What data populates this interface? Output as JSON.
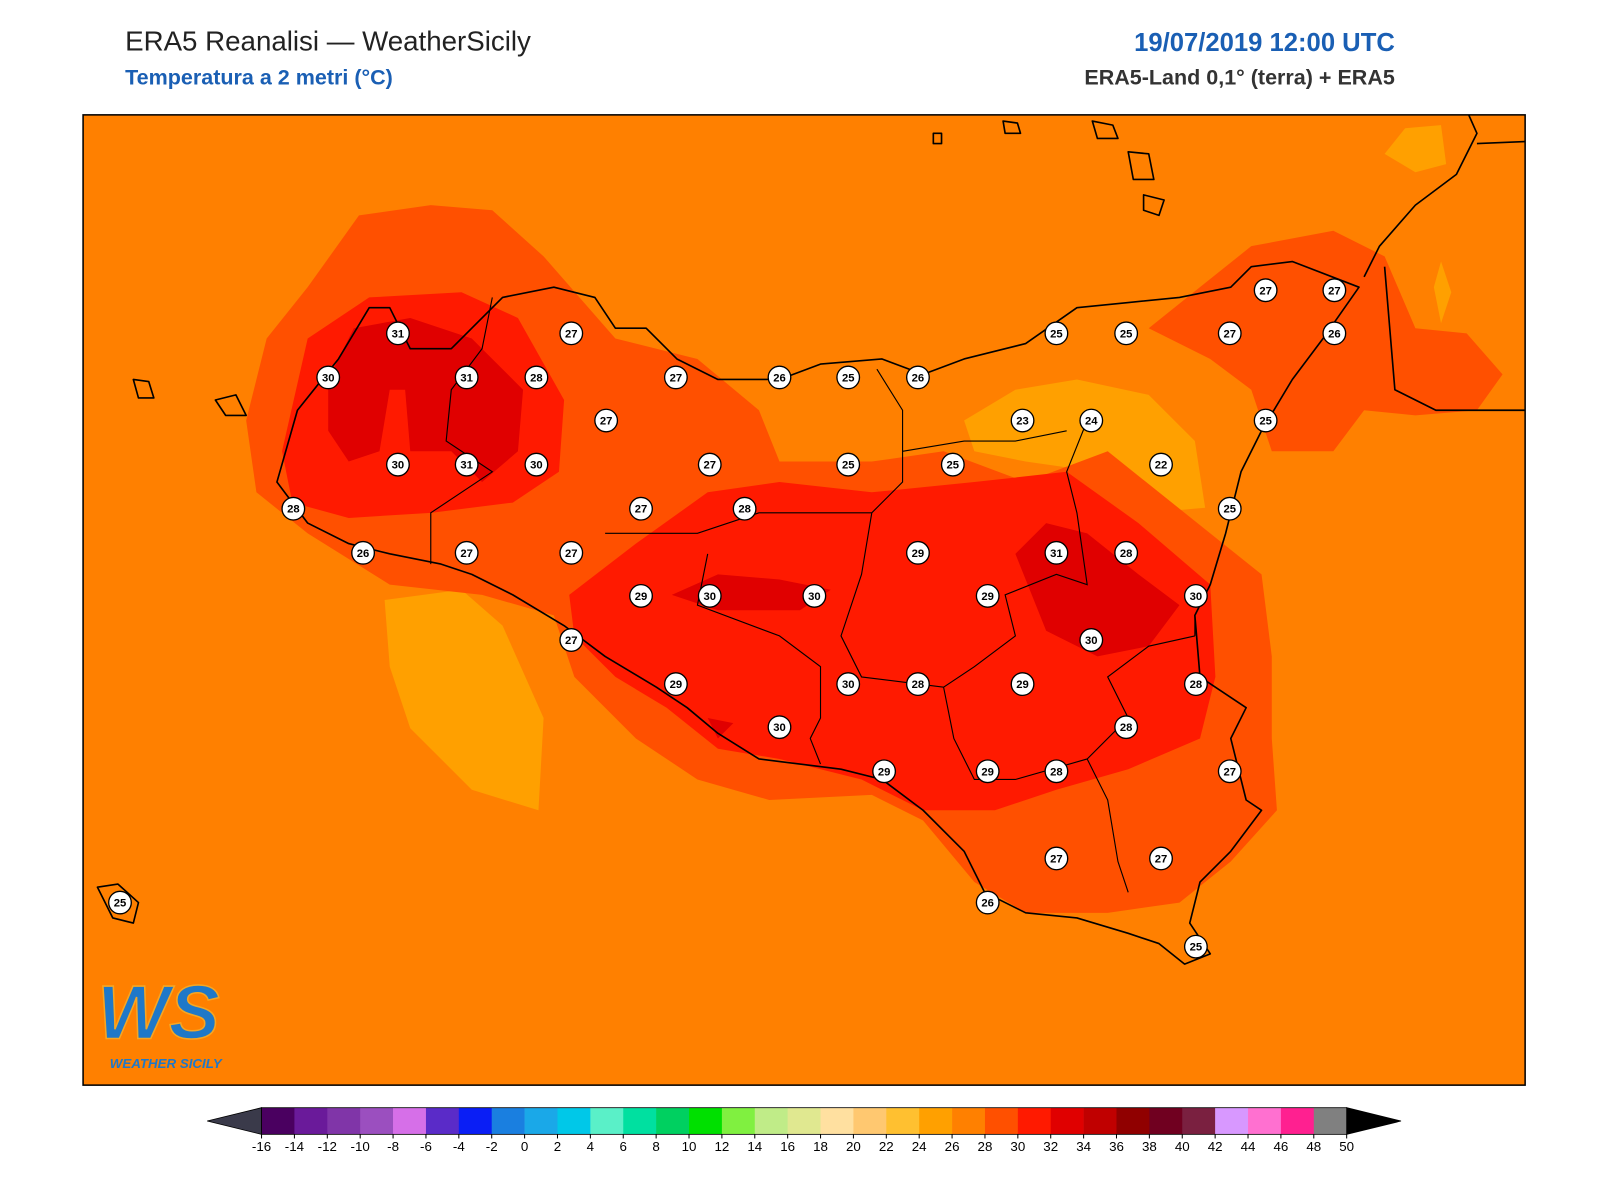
{
  "header": {
    "title": "ERA5 Reanalisi — WeatherSicily",
    "subtitle": "Temperatura a 2 metri (°C)",
    "date": "19/07/2019 12:00 UTC",
    "source": "ERA5-Land 0,1° (terra) + ERA5"
  },
  "stations": {
    "values": [
      31,
      27,
      30,
      31,
      28,
      27,
      26,
      25,
      26,
      25,
      25,
      27,
      27,
      27,
      26,
      27,
      23,
      24,
      25,
      30,
      31,
      30,
      27,
      25,
      25,
      22,
      28,
      27,
      28,
      25,
      26,
      27,
      27,
      29,
      31,
      28,
      29,
      30,
      30,
      29,
      30,
      27,
      30,
      29,
      30,
      28,
      29,
      28,
      30,
      28,
      29,
      29,
      28,
      27,
      27,
      27,
      26,
      25,
      25
    ]
  },
  "colorbar": {
    "ticks": [
      -16,
      -14,
      -12,
      -10,
      -8,
      -6,
      -4,
      -2,
      0,
      2,
      4,
      6,
      8,
      10,
      12,
      14,
      16,
      18,
      20,
      22,
      24,
      26,
      28,
      30,
      32,
      34,
      36,
      38,
      40,
      42,
      44,
      46,
      48,
      50
    ],
    "colors": [
      "#4a0060",
      "#6a1a9a",
      "#8035a8",
      "#9b4fbf",
      "#d66fe8",
      "#5a2bc8",
      "#0a1ef5",
      "#1a7fe0",
      "#1aa8e8",
      "#00c8e8",
      "#5af0c8",
      "#00e0a0",
      "#00d060",
      "#00e000",
      "#80f040",
      "#c0ec88",
      "#e0e890",
      "#ffe0a0",
      "#ffc870",
      "#ffc030",
      "#ffa000",
      "#ff8000",
      "#ff5000",
      "#ff1a00",
      "#e00000",
      "#c00000",
      "#900000",
      "#700020",
      "#7a2040",
      "#d898ff",
      "#ff70d0",
      "#ff2090",
      "#808080",
      "#333333"
    ],
    "under_color": "#3a3a4a",
    "over_color": "#000000"
  },
  "logo": {
    "mark": "WS",
    "name": "WEATHER SICILY"
  }
}
